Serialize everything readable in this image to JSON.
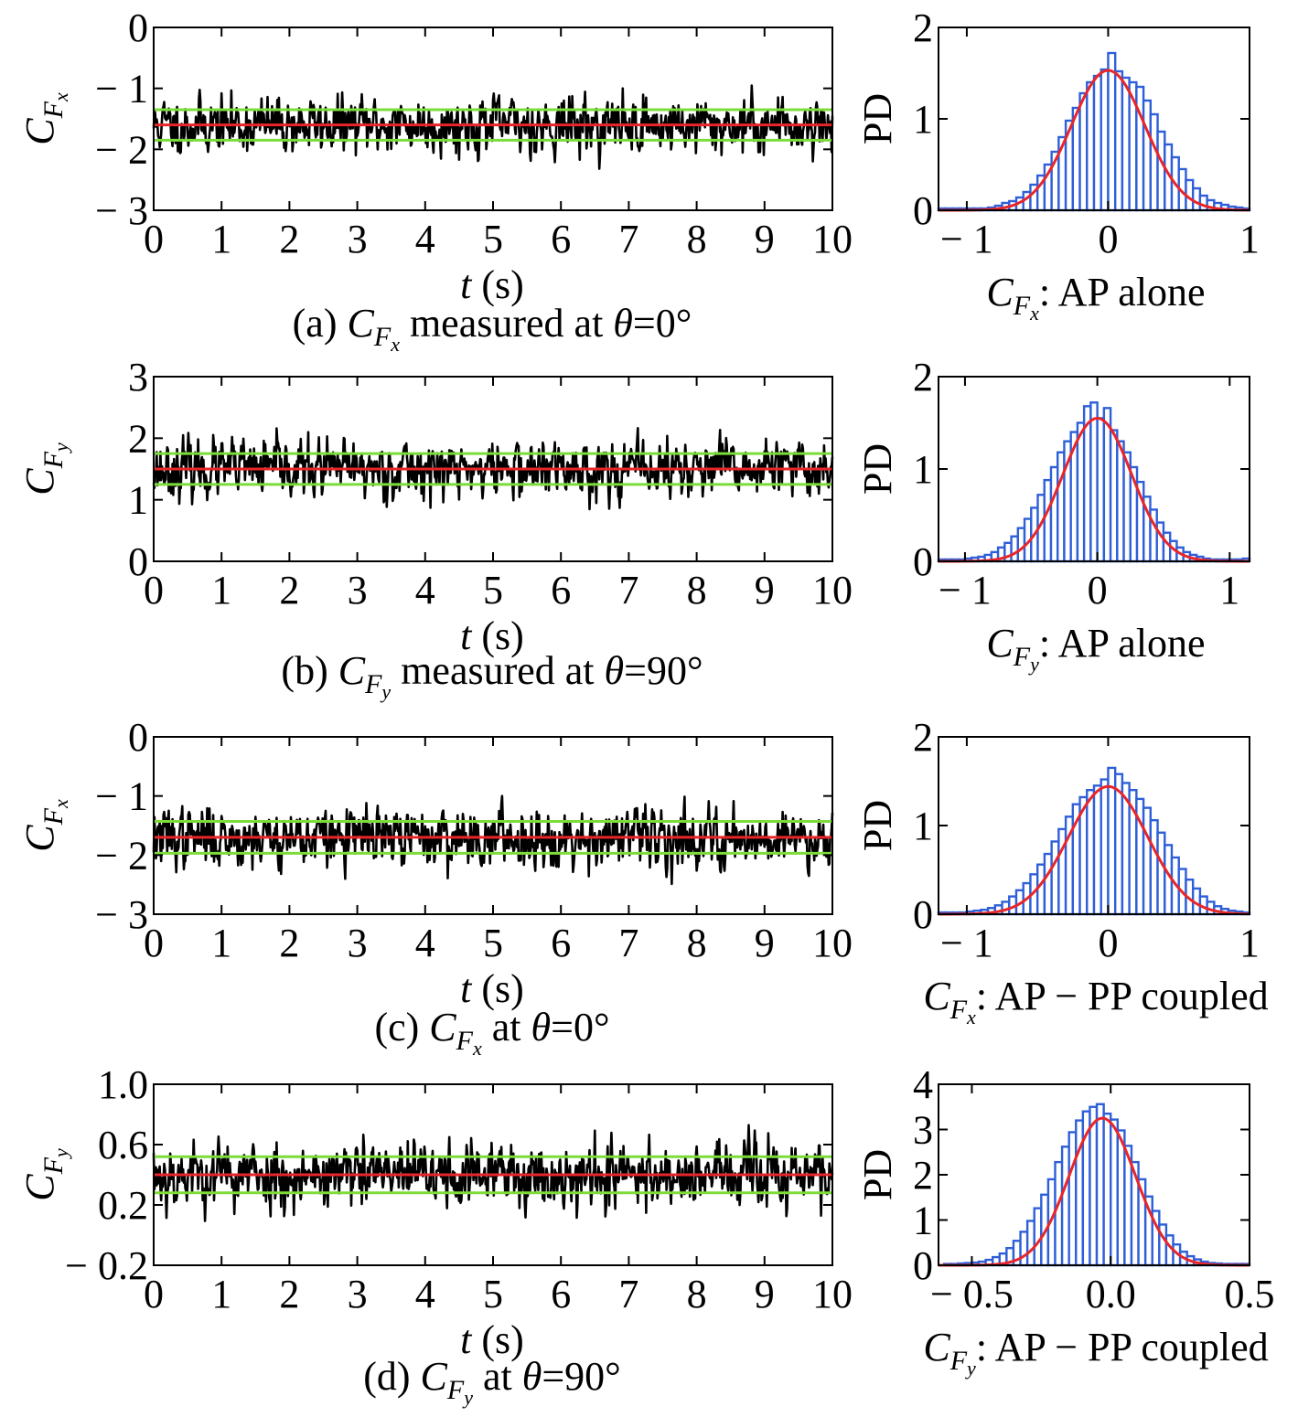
{
  "figure": {
    "panels": [
      {
        "caption": {
          "prefix": "(a) ",
          "sym": "C",
          "subF": "F",
          "subsub": "x",
          "suffix": " measured at ",
          "theta": "θ",
          "value": "=0°"
        },
        "ts_ylabel": {
          "sym": "C",
          "subF": "F",
          "subsub": "x"
        },
        "hist_xlabel": {
          "sym": "C",
          "subF": "F",
          "subsub": "x",
          "text": ": AP alone"
        },
        "hist_ylabel": "PD"
      },
      {
        "caption": {
          "prefix": "(b) ",
          "sym": "C",
          "subF": "F",
          "subsub": "y",
          "suffix": " measured at ",
          "theta": "θ",
          "value": "=90°"
        },
        "ts_ylabel": {
          "sym": "C",
          "subF": "F",
          "subsub": "y"
        },
        "hist_xlabel": {
          "sym": "C",
          "subF": "F",
          "subsub": "y",
          "text": ": AP alone"
        },
        "hist_ylabel": "PD"
      },
      {
        "caption": {
          "prefix": "(c) ",
          "sym": "C",
          "subF": "F",
          "subsub": "x",
          "suffix": " at ",
          "theta": "θ",
          "value": "=0°"
        },
        "ts_ylabel": {
          "sym": "C",
          "subF": "F",
          "subsub": "x"
        },
        "hist_xlabel": {
          "sym": "C",
          "subF": "F",
          "subsub": "x",
          "text": ": AP − PP coupled"
        },
        "hist_ylabel": "PD"
      },
      {
        "caption": {
          "prefix": "(d) ",
          "sym": "C",
          "subF": "F",
          "subsub": "y",
          "suffix": " at ",
          "theta": "θ",
          "value": "=90°"
        },
        "ts_ylabel": {
          "sym": "C",
          "subF": "F",
          "subsub": "y"
        },
        "hist_xlabel": {
          "sym": "C",
          "subF": "F",
          "subsub": "y",
          "text": ": AP − PP coupled"
        },
        "hist_ylabel": "PD"
      }
    ],
    "ts_xlabel": {
      "var": "t",
      "unit": " (s)"
    }
  },
  "colors": {
    "signal": "#000000",
    "mean_line": "#e8262a",
    "band_line": "#7ddc3a",
    "histogram": "#2e5fd8",
    "fit_curve": "#e8262a",
    "axes": "#000000"
  },
  "chart_data": [
    {
      "type": "line",
      "panel": "a-timeseries",
      "x_range": [
        0,
        10
      ],
      "ylim": [
        -3,
        0
      ],
      "yticks": [
        0,
        -1,
        -2,
        -3
      ],
      "ytick_labels": [
        "0",
        "− 1",
        "− 2",
        "− 3"
      ],
      "xticks": [
        0,
        1,
        2,
        3,
        4,
        5,
        6,
        7,
        8,
        9,
        10
      ],
      "xtick_labels": [
        "0",
        "1",
        "2",
        "3",
        "4",
        "5",
        "6",
        "7",
        "8",
        "9",
        "10"
      ],
      "series_summary": {
        "mean": -1.6,
        "std": 0.25,
        "min": -2.4,
        "max": -0.95
      },
      "reference_lines": [
        {
          "role": "mean",
          "y": -1.6
        },
        {
          "role": "upper",
          "y": -1.35
        },
        {
          "role": "lower",
          "y": -1.85
        }
      ],
      "seed": 11
    },
    {
      "type": "bar",
      "panel": "a-histogram",
      "xlim": [
        -1.2,
        1.0
      ],
      "ylim": [
        0,
        2
      ],
      "xticks": [
        -1,
        0,
        1
      ],
      "xtick_labels": [
        "− 1",
        "0",
        "1"
      ],
      "yticks": [
        0,
        1,
        2
      ],
      "ytick_labels": [
        "0",
        "1",
        "2"
      ],
      "bin_start": -1.2,
      "bin_width": 0.05,
      "values": [
        0.02,
        0.02,
        0.02,
        0.02,
        0.02,
        0.02,
        0.02,
        0.03,
        0.05,
        0.08,
        0.1,
        0.14,
        0.2,
        0.28,
        0.38,
        0.5,
        0.64,
        0.8,
        0.98,
        1.12,
        1.28,
        1.4,
        1.47,
        1.54,
        1.72,
        1.52,
        1.45,
        1.4,
        1.35,
        1.2,
        1.05,
        0.86,
        0.72,
        0.58,
        0.45,
        0.33,
        0.24,
        0.16,
        0.11,
        0.08,
        0.06,
        0.04,
        0.03,
        0.02
      ],
      "fit": {
        "mean": 0.0,
        "std": 0.26,
        "peak": 1.53
      }
    },
    {
      "type": "line",
      "panel": "b-timeseries",
      "x_range": [
        0,
        10
      ],
      "ylim": [
        0,
        3
      ],
      "yticks": [
        0,
        1,
        2,
        3
      ],
      "ytick_labels": [
        "0",
        "1",
        "2",
        "3"
      ],
      "xticks": [
        0,
        1,
        2,
        3,
        4,
        5,
        6,
        7,
        8,
        9,
        10
      ],
      "xtick_labels": [
        "0",
        "1",
        "2",
        "3",
        "4",
        "5",
        "6",
        "7",
        "8",
        "9",
        "10"
      ],
      "series_summary": {
        "mean": 1.5,
        "std": 0.25,
        "min": 0.8,
        "max": 2.4
      },
      "reference_lines": [
        {
          "role": "mean",
          "y": 1.5
        },
        {
          "role": "upper",
          "y": 1.75
        },
        {
          "role": "lower",
          "y": 1.25
        }
      ],
      "seed": 23
    },
    {
      "type": "bar",
      "panel": "b-histogram",
      "xlim": [
        -1.2,
        1.15
      ],
      "ylim": [
        0,
        2
      ],
      "xticks": [
        -1,
        0,
        1
      ],
      "xtick_labels": [
        "− 1",
        "0",
        "1"
      ],
      "yticks": [
        0,
        1,
        2
      ],
      "ytick_labels": [
        "0",
        "1",
        "2"
      ],
      "bin_start": -1.2,
      "bin_width": 0.05,
      "values": [
        0.02,
        0.02,
        0.02,
        0.02,
        0.03,
        0.04,
        0.05,
        0.07,
        0.1,
        0.15,
        0.2,
        0.27,
        0.36,
        0.46,
        0.58,
        0.72,
        0.88,
        1.02,
        1.18,
        1.3,
        1.4,
        1.5,
        1.68,
        1.72,
        1.55,
        1.66,
        1.42,
        1.3,
        1.18,
        1.02,
        0.86,
        0.7,
        0.56,
        0.42,
        0.31,
        0.22,
        0.15,
        0.1,
        0.07,
        0.05,
        0.03,
        0.02,
        0.02,
        0.02,
        0.02,
        0.02,
        0.03
      ],
      "fit": {
        "mean": 0.0,
        "std": 0.26,
        "peak": 1.55
      }
    },
    {
      "type": "line",
      "panel": "c-timeseries",
      "x_range": [
        0,
        10
      ],
      "ylim": [
        -3,
        0
      ],
      "yticks": [
        0,
        -1,
        -2,
        -3
      ],
      "ytick_labels": [
        "0",
        "− 1",
        "− 2",
        "− 3"
      ],
      "xticks": [
        0,
        1,
        2,
        3,
        4,
        5,
        6,
        7,
        8,
        9,
        10
      ],
      "xtick_labels": [
        "0",
        "1",
        "2",
        "3",
        "4",
        "5",
        "6",
        "7",
        "8",
        "9",
        "10"
      ],
      "series_summary": {
        "mean": -1.7,
        "std": 0.27,
        "min": -2.6,
        "max": -1.0
      },
      "reference_lines": [
        {
          "role": "mean",
          "y": -1.7
        },
        {
          "role": "upper",
          "y": -1.43
        },
        {
          "role": "lower",
          "y": -1.97
        }
      ],
      "seed": 37
    },
    {
      "type": "bar",
      "panel": "c-histogram",
      "xlim": [
        -1.2,
        1.0
      ],
      "ylim": [
        0,
        2
      ],
      "xticks": [
        -1,
        0,
        1
      ],
      "xtick_labels": [
        "− 1",
        "0",
        "1"
      ],
      "yticks": [
        0,
        1,
        2
      ],
      "ytick_labels": [
        "0",
        "1",
        "2"
      ],
      "bin_start": -1.2,
      "bin_width": 0.05,
      "values": [
        0.02,
        0.02,
        0.02,
        0.02,
        0.03,
        0.04,
        0.05,
        0.07,
        0.1,
        0.14,
        0.2,
        0.27,
        0.35,
        0.45,
        0.56,
        0.68,
        0.82,
        0.96,
        1.1,
        1.24,
        1.32,
        1.4,
        1.45,
        1.52,
        1.65,
        1.58,
        1.48,
        1.4,
        1.3,
        1.2,
        1.06,
        0.92,
        0.78,
        0.64,
        0.51,
        0.39,
        0.29,
        0.2,
        0.14,
        0.09,
        0.06,
        0.04,
        0.03,
        0.02
      ],
      "fit": {
        "mean": 0.0,
        "std": 0.28,
        "peak": 1.44
      }
    },
    {
      "type": "line",
      "panel": "d-timeseries",
      "x_range": [
        0,
        10
      ],
      "ylim": [
        -0.2,
        1.0
      ],
      "yticks": [
        1.0,
        0.6,
        0.2,
        -0.2
      ],
      "ytick_labels": [
        "1.0",
        "0.6",
        "0.2",
        "− 0.2"
      ],
      "xticks": [
        0,
        1,
        2,
        3,
        4,
        5,
        6,
        7,
        8,
        9,
        10
      ],
      "xtick_labels": [
        "0",
        "1",
        "2",
        "3",
        "4",
        "5",
        "6",
        "7",
        "8",
        "9",
        "10"
      ],
      "series_summary": {
        "mean": 0.4,
        "std": 0.12,
        "min": 0.08,
        "max": 0.78
      },
      "reference_lines": [
        {
          "role": "mean",
          "y": 0.4
        },
        {
          "role": "upper",
          "y": 0.52
        },
        {
          "role": "lower",
          "y": 0.28
        }
      ],
      "seed": 53
    },
    {
      "type": "bar",
      "panel": "d-histogram",
      "xlim": [
        -0.62,
        0.5
      ],
      "ylim": [
        0,
        4
      ],
      "xticks": [
        -0.5,
        0.0,
        0.5
      ],
      "xtick_labels": [
        "− 0.5",
        "0.0",
        "0.5"
      ],
      "yticks": [
        0,
        1,
        2,
        3,
        4
      ],
      "ytick_labels": [
        "0",
        "1",
        "2",
        "3",
        "4"
      ],
      "bin_start": -0.6,
      "bin_width": 0.025,
      "values": [
        0.03,
        0.03,
        0.04,
        0.05,
        0.06,
        0.08,
        0.12,
        0.18,
        0.26,
        0.38,
        0.54,
        0.74,
        0.98,
        1.26,
        1.56,
        1.9,
        2.28,
        2.62,
        2.94,
        3.2,
        3.4,
        3.5,
        3.56,
        3.35,
        3.22,
        2.98,
        2.64,
        2.28,
        1.9,
        1.52,
        1.2,
        0.9,
        0.66,
        0.46,
        0.3,
        0.2,
        0.13,
        0.08,
        0.05,
        0.04,
        0.03,
        0.03,
        0.03,
        0.03
      ],
      "fit": {
        "mean": -0.03,
        "std": 0.12,
        "peak": 3.25
      }
    }
  ]
}
